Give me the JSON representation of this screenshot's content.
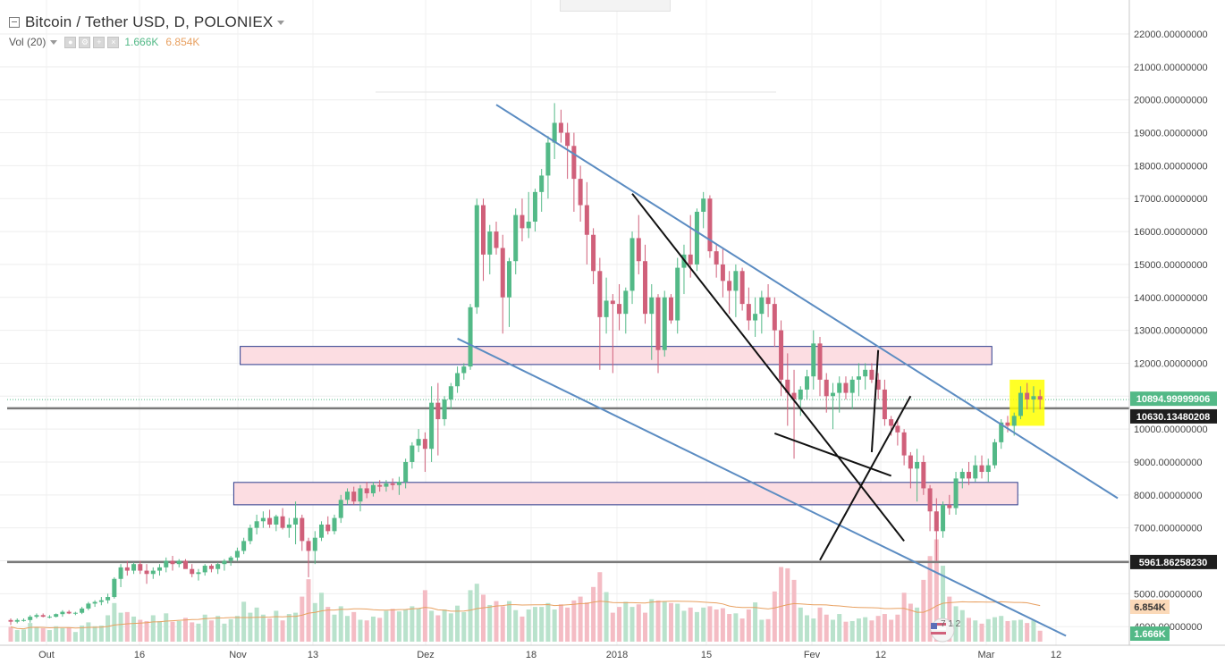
{
  "header": {
    "title": "Bitcoin / Tether USD, D, POLONIEX",
    "indicator": "Vol (20)",
    "vol_value_1": "1.666K",
    "vol_value_2": "6.854K"
  },
  "colors": {
    "up": "#53b987",
    "down": "#d0607a",
    "channel": "#5b8cc2",
    "zone_fill": "#fcdde2",
    "zone_border": "#2a3a8c",
    "highlight": "#ffff00",
    "vol_ma": "#e8a060"
  },
  "chart_data": {
    "type": "candlestick",
    "symbol": "Bitcoin / Tether USD",
    "interval": "D",
    "exchange": "POLONIEX",
    "x_axis_labels": [
      "Out",
      "16",
      "Nov",
      "13",
      "Dez",
      "18",
      "2018",
      "15",
      "Fev",
      "12",
      "Mar",
      "12"
    ],
    "y_axis_labels": [
      "22000.00000000",
      "21000.00000000",
      "20000.00000000",
      "19000.00000000",
      "18000.00000000",
      "17000.00000000",
      "16000.00000000",
      "15000.00000000",
      "14000.00000000",
      "13000.00000000",
      "12000.00000000",
      "11000.00000000",
      "10000.00000000",
      "9000.00000000",
      "8000.00000000",
      "7000.00000000",
      "6000.00000000",
      "5000.00000000",
      "4000.00000000"
    ],
    "ylim": [
      3600,
      22900
    ],
    "price_tags": [
      {
        "value": "10894.99999906",
        "price": 10895,
        "style": "green"
      },
      {
        "value": "10630.13480208",
        "price": 10630,
        "style": "black"
      },
      {
        "value": "5961.86258230",
        "price": 5962,
        "style": "black"
      }
    ],
    "volume_tags": [
      "6.854K",
      "1.666K"
    ],
    "volume_ma_value": "6.854K",
    "horizontal_lines": [
      10630,
      5962
    ],
    "zones": [
      {
        "low": 11960,
        "high": 12510,
        "start_day": 36,
        "end_day": 151
      },
      {
        "low": 7700,
        "high": 8380,
        "start_day": 35,
        "end_day": 155
      }
    ],
    "channel_lines": [
      {
        "from": [
          75,
          19850
        ],
        "to": [
          171,
          7900
        ]
      },
      {
        "from": [
          69,
          12750
        ],
        "to": [
          163,
          3720
        ]
      }
    ],
    "trend_lines": [
      {
        "from": [
          96,
          17150
        ],
        "to": [
          138,
          6600
        ]
      },
      {
        "from": [
          118,
          9870
        ],
        "to": [
          136,
          8580
        ]
      },
      {
        "from": [
          125,
          6020
        ],
        "to": [
          139,
          11000
        ]
      },
      {
        "from": [
          133,
          9300
        ],
        "to": [
          134,
          12400
        ]
      }
    ],
    "candles": [
      [
        4200,
        4250,
        4050,
        4150,
        2.3
      ],
      [
        4150,
        4250,
        4100,
        4200,
        1.8
      ],
      [
        4200,
        4250,
        4150,
        4200,
        1.9
      ],
      [
        4200,
        4350,
        4120,
        4300,
        2.9
      ],
      [
        4300,
        4400,
        4250,
        4350,
        2.3
      ],
      [
        4350,
        4400,
        4280,
        4300,
        2.1
      ],
      [
        4300,
        4350,
        4250,
        4300,
        1.8
      ],
      [
        4300,
        4400,
        4280,
        4380,
        2.4
      ],
      [
        4380,
        4500,
        4300,
        4450,
        2.1
      ],
      [
        4450,
        4500,
        4380,
        4400,
        2.2
      ],
      [
        4400,
        4450,
        4350,
        4420,
        1.5
      ],
      [
        4420,
        4600,
        4380,
        4550,
        2.5
      ],
      [
        4550,
        4750,
        4500,
        4700,
        3.0
      ],
      [
        4700,
        4800,
        4600,
        4750,
        2.4
      ],
      [
        4750,
        4900,
        4650,
        4800,
        2.5
      ],
      [
        4800,
        5000,
        4700,
        4900,
        4.1
      ],
      [
        4900,
        5500,
        4850,
        5450,
        6.0
      ],
      [
        5450,
        5900,
        5200,
        5800,
        4.5
      ],
      [
        5800,
        6000,
        5550,
        5700,
        4.6
      ],
      [
        5700,
        5950,
        5600,
        5900,
        3.9
      ],
      [
        5900,
        6000,
        5600,
        5700,
        3.4
      ],
      [
        5700,
        5900,
        5300,
        5600,
        3.2
      ],
      [
        5600,
        5800,
        5450,
        5700,
        4.1
      ],
      [
        5700,
        5900,
        5550,
        5800,
        3.2
      ],
      [
        5800,
        6100,
        5650,
        6000,
        4.4
      ],
      [
        6000,
        6150,
        5700,
        5900,
        3.1
      ],
      [
        5900,
        6050,
        5800,
        6000,
        3.2
      ],
      [
        6000,
        6050,
        5800,
        5750,
        3.7
      ],
      [
        5750,
        5900,
        5500,
        5600,
        3.0
      ],
      [
        5600,
        5750,
        5400,
        5650,
        2.8
      ],
      [
        5650,
        5900,
        5550,
        5850,
        4.2
      ],
      [
        5850,
        5900,
        5650,
        5750,
        3.3
      ],
      [
        5750,
        5950,
        5600,
        5900,
        4.0
      ],
      [
        5900,
        6050,
        5700,
        6000,
        2.8
      ],
      [
        6000,
        6150,
        5850,
        6100,
        3.5
      ],
      [
        6100,
        6400,
        6000,
        6300,
        4.0
      ],
      [
        6300,
        6700,
        6200,
        6600,
        6.2
      ],
      [
        6600,
        7100,
        6500,
        7000,
        4.5
      ],
      [
        7000,
        7400,
        6800,
        7200,
        5.3
      ],
      [
        7200,
        7500,
        7000,
        7300,
        4.2
      ],
      [
        7300,
        7550,
        7000,
        7100,
        3.6
      ],
      [
        7100,
        7400,
        6900,
        7350,
        4.8
      ],
      [
        7350,
        7600,
        6950,
        7000,
        3.3
      ],
      [
        7000,
        7300,
        6700,
        7100,
        4.3
      ],
      [
        7100,
        7800,
        6500,
        7300,
        4.5
      ],
      [
        7300,
        7400,
        6300,
        6600,
        7.0
      ],
      [
        6600,
        6700,
        5500,
        6300,
        9.7
      ],
      [
        6300,
        6900,
        5900,
        6700,
        6.0
      ],
      [
        6700,
        7200,
        6600,
        7100,
        7.6
      ],
      [
        7100,
        7350,
        6800,
        6900,
        5.4
      ],
      [
        6900,
        7400,
        6800,
        7300,
        4.2
      ],
      [
        7300,
        8000,
        7150,
        7850,
        5.5
      ],
      [
        7850,
        8200,
        7700,
        8100,
        4.0
      ],
      [
        8100,
        8250,
        7700,
        7800,
        4.6
      ],
      [
        7800,
        8300,
        7500,
        8200,
        3.4
      ],
      [
        8200,
        8400,
        7900,
        8050,
        3.3
      ],
      [
        8050,
        8400,
        7950,
        8300,
        3.9
      ],
      [
        8300,
        8450,
        8100,
        8250,
        3.7
      ],
      [
        8250,
        8450,
        8100,
        8350,
        4.8
      ],
      [
        8350,
        8500,
        8150,
        8300,
        5.1
      ],
      [
        8300,
        8550,
        8000,
        8400,
        4.7
      ],
      [
        8400,
        9100,
        8200,
        9000,
        5.0
      ],
      [
        9000,
        9600,
        8800,
        9500,
        5.5
      ],
      [
        9500,
        10000,
        9300,
        9700,
        5.2
      ],
      [
        9700,
        9900,
        8700,
        9400,
        8.0
      ],
      [
        9400,
        11300,
        9000,
        10800,
        4.8
      ],
      [
        10800,
        11400,
        9200,
        10300,
        4.1
      ],
      [
        10300,
        11000,
        10100,
        10900,
        5.0
      ],
      [
        10900,
        11400,
        10600,
        11300,
        4.4
      ],
      [
        11300,
        11900,
        11100,
        11700,
        5.6
      ],
      [
        11700,
        12000,
        11500,
        11900,
        4.6
      ],
      [
        11900,
        13800,
        11800,
        13700,
        8.0
      ],
      [
        13700,
        17000,
        13500,
        16800,
        9.0
      ],
      [
        16800,
        17000,
        14500,
        15300,
        7.3
      ],
      [
        15300,
        16200,
        14700,
        16000,
        5.7
      ],
      [
        16000,
        16300,
        15300,
        15500,
        6.3
      ],
      [
        15500,
        15900,
        12900,
        14000,
        5.5
      ],
      [
        14000,
        15200,
        13100,
        15100,
        6.3
      ],
      [
        15100,
        16700,
        14700,
        16500,
        4.9
      ],
      [
        16500,
        17000,
        15700,
        16100,
        3.9
      ],
      [
        16100,
        17200,
        15800,
        16300,
        5.0
      ],
      [
        16300,
        17300,
        16000,
        17200,
        5.4
      ],
      [
        17200,
        17900,
        16600,
        17700,
        5.4
      ],
      [
        17700,
        18900,
        17000,
        18700,
        6.0
      ],
      [
        18700,
        19900,
        18200,
        19300,
        5.0
      ],
      [
        19300,
        19700,
        18700,
        19000,
        5.8
      ],
      [
        19000,
        19300,
        17600,
        18600,
        5.3
      ],
      [
        18600,
        19000,
        16600,
        17600,
        6.4
      ],
      [
        17600,
        18000,
        16300,
        16800,
        7.0
      ],
      [
        16800,
        17500,
        15000,
        15900,
        6.1
      ],
      [
        15900,
        16100,
        14400,
        14800,
        8.5
      ],
      [
        14800,
        15200,
        11800,
        13400,
        10.8
      ],
      [
        13400,
        14600,
        12900,
        13900,
        7.7
      ],
      [
        13900,
        14100,
        11700,
        13800,
        4.5
      ],
      [
        13800,
        14400,
        13000,
        13500,
        5.4
      ],
      [
        13500,
        14300,
        12900,
        14200,
        6.2
      ],
      [
        14200,
        16000,
        13800,
        15800,
        5.4
      ],
      [
        15800,
        16500,
        14700,
        15100,
        5.8
      ],
      [
        15100,
        15600,
        13200,
        13500,
        4.5
      ],
      [
        13500,
        14400,
        12100,
        14000,
        6.6
      ],
      [
        14000,
        14100,
        11700,
        12400,
        6.4
      ],
      [
        12400,
        14200,
        12200,
        14000,
        6.3
      ],
      [
        14000,
        14100,
        13200,
        13300,
        6.0
      ],
      [
        13300,
        15200,
        12900,
        14900,
        5.9
      ],
      [
        14900,
        15600,
        14100,
        15300,
        4.8
      ],
      [
        15300,
        16500,
        14600,
        15000,
        5.3
      ],
      [
        15000,
        16700,
        14800,
        16600,
        4.6
      ],
      [
        16600,
        17200,
        16100,
        17000,
        5.3
      ],
      [
        17000,
        17100,
        15200,
        15400,
        5.5
      ],
      [
        15400,
        15600,
        14600,
        15000,
        5.0
      ],
      [
        15000,
        15500,
        14000,
        14500,
        5.2
      ],
      [
        14500,
        14800,
        13500,
        14200,
        4.3
      ],
      [
        14200,
        15000,
        13400,
        14800,
        4.4
      ],
      [
        14800,
        14900,
        13600,
        13800,
        3.6
      ],
      [
        13800,
        14300,
        13000,
        13300,
        5.0
      ],
      [
        13300,
        14000,
        12800,
        13500,
        6.1
      ],
      [
        13500,
        14200,
        12900,
        14000,
        3.4
      ],
      [
        14000,
        14400,
        13400,
        13800,
        3.5
      ],
      [
        13800,
        14000,
        12500,
        13000,
        7.8
      ],
      [
        13000,
        13300,
        11000,
        11500,
        11.6
      ],
      [
        11500,
        12300,
        10100,
        11100,
        11.4
      ],
      [
        11100,
        11800,
        9100,
        10900,
        9.6
      ],
      [
        10900,
        11300,
        10400,
        11200,
        5.3
      ],
      [
        11200,
        11800,
        10900,
        11600,
        4.1
      ],
      [
        11600,
        13000,
        11200,
        12600,
        3.6
      ],
      [
        12600,
        12800,
        11000,
        11500,
        5.3
      ],
      [
        11500,
        11700,
        10500,
        11000,
        4.2
      ],
      [
        11000,
        11400,
        10000,
        11100,
        3.4
      ],
      [
        11100,
        11600,
        10500,
        11400,
        4.3
      ],
      [
        11400,
        11600,
        10900,
        11100,
        3.1
      ],
      [
        11100,
        11600,
        10600,
        11500,
        3.2
      ],
      [
        11500,
        12000,
        11000,
        11600,
        3.6
      ],
      [
        11600,
        12000,
        11200,
        11800,
        3.8
      ],
      [
        11800,
        12000,
        11400,
        11500,
        3.3
      ],
      [
        11500,
        11700,
        10900,
        11200,
        4.0
      ],
      [
        11200,
        11500,
        10100,
        10300,
        4.3
      ],
      [
        10300,
        10400,
        9800,
        10100,
        3.4
      ],
      [
        10100,
        10300,
        9500,
        9900,
        4.2
      ],
      [
        9900,
        10000,
        8900,
        9200,
        7.6
      ],
      [
        9200,
        9300,
        8200,
        8800,
        5.9
      ],
      [
        8800,
        9400,
        7800,
        9000,
        5.3
      ],
      [
        9000,
        9200,
        8000,
        8200,
        9.6
      ],
      [
        8200,
        8300,
        6900,
        7500,
        13.3
      ],
      [
        7500,
        7900,
        6000,
        6900,
        15.9
      ],
      [
        6900,
        7800,
        6700,
        7700,
        11.8
      ],
      [
        7700,
        8000,
        7400,
        7600,
        7.0
      ],
      [
        7600,
        8700,
        7400,
        8500,
        5.5
      ],
      [
        8500,
        8800,
        8200,
        8700,
        4.9
      ],
      [
        8700,
        9000,
        8300,
        8500,
        3.7
      ],
      [
        8500,
        9200,
        8400,
        8900,
        3.3
      ],
      [
        8900,
        9200,
        8500,
        8700,
        2.8
      ],
      [
        8700,
        9100,
        8400,
        8900,
        3.5
      ],
      [
        8900,
        9700,
        8800,
        9600,
        3.8
      ],
      [
        9600,
        10300,
        9400,
        10200,
        4.0
      ],
      [
        10200,
        10400,
        9900,
        10100,
        3.2
      ],
      [
        10100,
        10500,
        9800,
        10400,
        3.3
      ],
      [
        10400,
        11300,
        10300,
        11100,
        3.4
      ],
      [
        11100,
        11400,
        10600,
        10900,
        2.9
      ],
      [
        10900,
        11300,
        10500,
        11000,
        3.3
      ],
      [
        11000,
        11200,
        10600,
        10895,
        1.7
      ]
    ]
  }
}
